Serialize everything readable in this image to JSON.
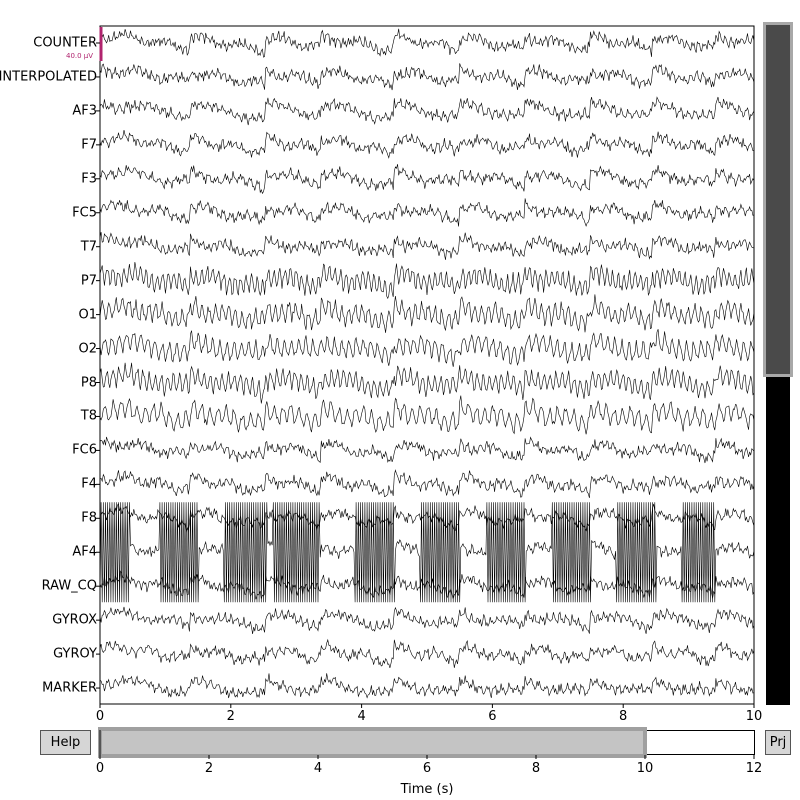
{
  "channels": [
    "COUNTER",
    "INTERPOLATED",
    "AF3",
    "F7",
    "F3",
    "FC5",
    "T7",
    "P7",
    "O1",
    "O2",
    "P8",
    "T8",
    "FC6",
    "F4",
    "F8",
    "AF4",
    "RAW_CQ",
    "GYROX",
    "GYROY",
    "MARKER"
  ],
  "scale_bar_label": "40.0 µV",
  "colors": {
    "trace": "#000000",
    "scale_bar": "#b0246e",
    "scrollbar_thumb": "#4a4a4a",
    "scrollbar_track": "#000000",
    "hscroll_thumb": "#c4c4c4",
    "button_bg": "#d6d6d6"
  },
  "main_axis": {
    "xlim": [
      0,
      10
    ],
    "xticks": [
      "0",
      "2",
      "4",
      "6",
      "8",
      "10"
    ]
  },
  "time_axis": {
    "xlim": [
      0,
      12
    ],
    "xticks": [
      "0",
      "2",
      "4",
      "6",
      "8",
      "10",
      "12"
    ],
    "xlabel": "Time (s)",
    "view_window": [
      0,
      10
    ]
  },
  "vertical_scroll": {
    "visible_fraction": 0.52
  },
  "buttons": {
    "help": "Help",
    "proj": "Prj"
  }
}
